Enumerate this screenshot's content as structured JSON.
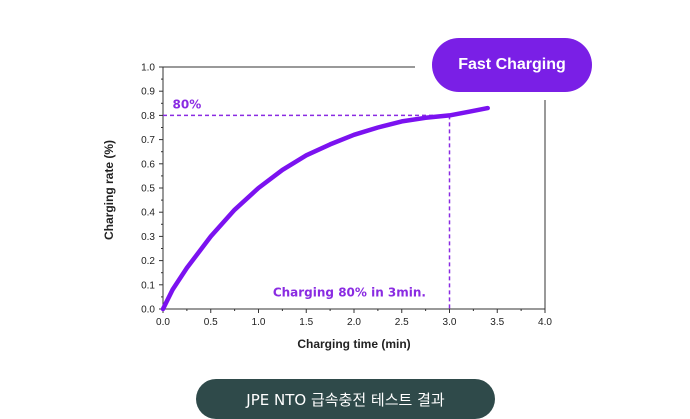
{
  "badge": {
    "label": "Fast Charging",
    "color": "#7a1fe6"
  },
  "caption": {
    "label": "JPE NTO 급속충전 테스트 결과",
    "color": "#2f4a4a"
  },
  "chart_data": {
    "type": "line",
    "title": "",
    "xlabel": "Charging time (min)",
    "ylabel": "Charging rate (%)",
    "xlim": [
      0.0,
      4.0
    ],
    "ylim": [
      0.0,
      1.0
    ],
    "x_ticks": [
      "0.0",
      "0.5",
      "1.0",
      "1.5",
      "2.0",
      "2.5",
      "3.0",
      "3.5",
      "4.0"
    ],
    "y_ticks": [
      "0.0",
      "0.1",
      "0.2",
      "0.3",
      "0.4",
      "0.5",
      "0.6",
      "0.7",
      "0.8",
      "0.9",
      "1.0"
    ],
    "grid": false,
    "series": [
      {
        "color": "#7b12f0",
        "x": [
          0.0,
          0.1,
          0.25,
          0.5,
          0.75,
          1.0,
          1.25,
          1.5,
          1.75,
          2.0,
          2.25,
          2.5,
          2.75,
          3.0,
          3.2,
          3.4
        ],
        "y": [
          0.0,
          0.08,
          0.17,
          0.3,
          0.41,
          0.5,
          0.575,
          0.635,
          0.68,
          0.72,
          0.75,
          0.775,
          0.79,
          0.8,
          0.815,
          0.83
        ]
      }
    ],
    "reference": {
      "x": 3.0,
      "y": 0.8,
      "color": "#8a2be2"
    },
    "annotations": [
      {
        "text": "80%",
        "x": 0.1,
        "y": 0.8
      },
      {
        "text": "Charging 80% in 3min.",
        "x": 1.15,
        "y": 0.03
      }
    ]
  }
}
